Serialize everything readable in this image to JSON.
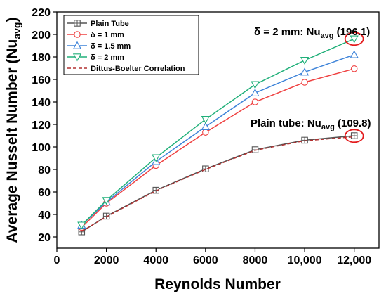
{
  "chart_data": {
    "type": "line",
    "xlabel": "Reynolds Number",
    "ylabel": "Average Nusselt Number (Nu",
    "ylabel_sub": "avg",
    "ylabel_suffix": ")",
    "xlim": [
      0,
      13000
    ],
    "ylim": [
      10,
      220
    ],
    "xticks": [
      0,
      2000,
      4000,
      6000,
      8000,
      10000,
      12000
    ],
    "xtick_labels": [
      "0",
      "2000",
      "4000",
      "6000",
      "8000",
      "10,000",
      "12,000"
    ],
    "yticks": [
      20,
      40,
      60,
      80,
      100,
      120,
      140,
      160,
      180,
      200,
      220
    ],
    "ytick_labels": [
      "20",
      "40",
      "60",
      "80",
      "100",
      "120",
      "140",
      "160",
      "180",
      "200",
      "220"
    ],
    "x": [
      1000,
      2000,
      4000,
      6000,
      8000,
      10000,
      12000
    ],
    "series": [
      {
        "name": "Plain Tube",
        "values": [
          24.5,
          38.5,
          61.5,
          80.5,
          97.5,
          106,
          110
        ],
        "color": "#555555",
        "marker": "square-cross",
        "dash": "solid"
      },
      {
        "name": "δ = 1 mm",
        "values": [
          28.5,
          50,
          83.5,
          113,
          140,
          157.5,
          169.5
        ],
        "color": "#ef4040",
        "marker": "circle",
        "dash": "solid"
      },
      {
        "name": "δ = 1.5 mm",
        "values": [
          30.5,
          51,
          87,
          118,
          148,
          166.5,
          182
        ],
        "color": "#3f84d9",
        "marker": "triangle-up",
        "dash": "solid"
      },
      {
        "name": "δ = 2 mm",
        "values": [
          30.5,
          52.5,
          90.5,
          124.5,
          155.5,
          177,
          196.1
        ],
        "color": "#21b07a",
        "marker": "triangle-down",
        "dash": "solid"
      },
      {
        "name": "Dittus-Boelter Correlation",
        "values": [
          25,
          38,
          61,
          80,
          97,
          105.5,
          109
        ],
        "color": "#b23030",
        "marker": "none",
        "dash": "dashed"
      }
    ],
    "legend_position": "top-left",
    "grid": false,
    "annotations": [
      {
        "pre": "δ = 2 mm: Nu",
        "sub": "avg",
        "post": " (196.1)",
        "target_x": 12000,
        "target_y": 196.1
      },
      {
        "pre": "Plain tube: Nu",
        "sub": "avg",
        "post": " (109.8)",
        "target_x": 12000,
        "target_y": 109.8
      }
    ],
    "highlight_color": "#e31a1c"
  }
}
